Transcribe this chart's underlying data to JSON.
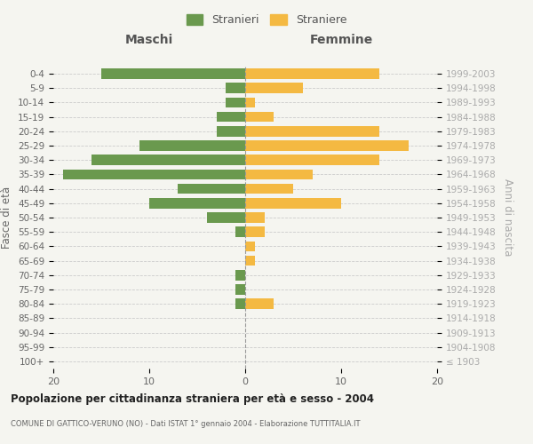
{
  "age_groups": [
    "100+",
    "95-99",
    "90-94",
    "85-89",
    "80-84",
    "75-79",
    "70-74",
    "65-69",
    "60-64",
    "55-59",
    "50-54",
    "45-49",
    "40-44",
    "35-39",
    "30-34",
    "25-29",
    "20-24",
    "15-19",
    "10-14",
    "5-9",
    "0-4"
  ],
  "birth_years": [
    "≤ 1903",
    "1904-1908",
    "1909-1913",
    "1914-1918",
    "1919-1923",
    "1924-1928",
    "1929-1933",
    "1934-1938",
    "1939-1943",
    "1944-1948",
    "1949-1953",
    "1954-1958",
    "1959-1963",
    "1964-1968",
    "1969-1973",
    "1974-1978",
    "1979-1983",
    "1984-1988",
    "1989-1993",
    "1994-1998",
    "1999-2003"
  ],
  "maschi": [
    0,
    0,
    0,
    0,
    1,
    1,
    1,
    0,
    0,
    1,
    4,
    10,
    7,
    19,
    16,
    11,
    3,
    3,
    2,
    2,
    15
  ],
  "femmine": [
    0,
    0,
    0,
    0,
    3,
    0,
    0,
    1,
    1,
    2,
    2,
    10,
    5,
    7,
    14,
    17,
    14,
    3,
    1,
    6,
    14
  ],
  "male_color": "#6a994e",
  "female_color": "#f4b942",
  "bg_color": "#f5f5f0",
  "grid_color": "#cccccc",
  "title": "Popolazione per cittadinanza straniera per età e sesso - 2004",
  "subtitle": "COMUNE DI GATTICO-VERUNO (NO) - Dati ISTAT 1° gennaio 2004 - Elaborazione TUTTITALIA.IT",
  "xlabel_left": "Maschi",
  "xlabel_right": "Femmine",
  "ylabel_left": "Fasce di età",
  "ylabel_right": "Anni di nascita",
  "xlim": 20,
  "legend_maschi": "Stranieri",
  "legend_femmine": "Straniere"
}
